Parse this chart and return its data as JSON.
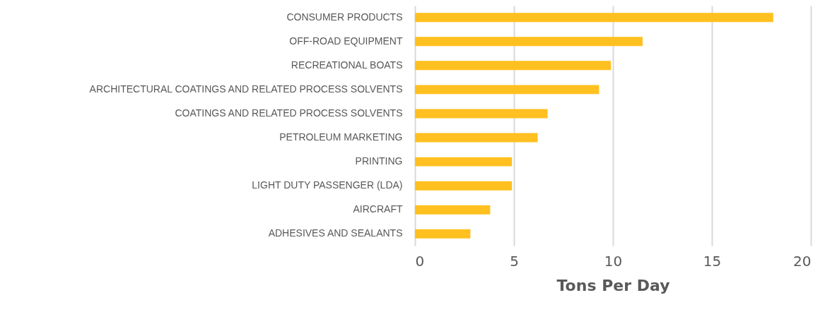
{
  "chart_data": {
    "type": "bar",
    "orientation": "horizontal",
    "xlabel": "Tons Per Day",
    "categories": [
      "CONSUMER PRODUCTS",
      "OFF-ROAD EQUIPMENT",
      "RECREATIONAL BOATS",
      "ARCHITECTURAL COATINGS AND RELATED PROCESS SOLVENTS",
      "COATINGS AND RELATED PROCESS SOLVENTS",
      "PETROLEUM MARKETING",
      "PRINTING",
      "LIGHT DUTY PASSENGER (LDA)",
      "AIRCRAFT",
      "ADHESIVES AND SEALANTS"
    ],
    "values": [
      18.1,
      11.5,
      9.9,
      9.3,
      6.7,
      6.2,
      4.9,
      4.9,
      3.8,
      2.8
    ],
    "color": "#ffc020",
    "xlim": [
      0,
      20
    ],
    "xticks": [
      0,
      5,
      10,
      15,
      20
    ],
    "grid": "x"
  }
}
